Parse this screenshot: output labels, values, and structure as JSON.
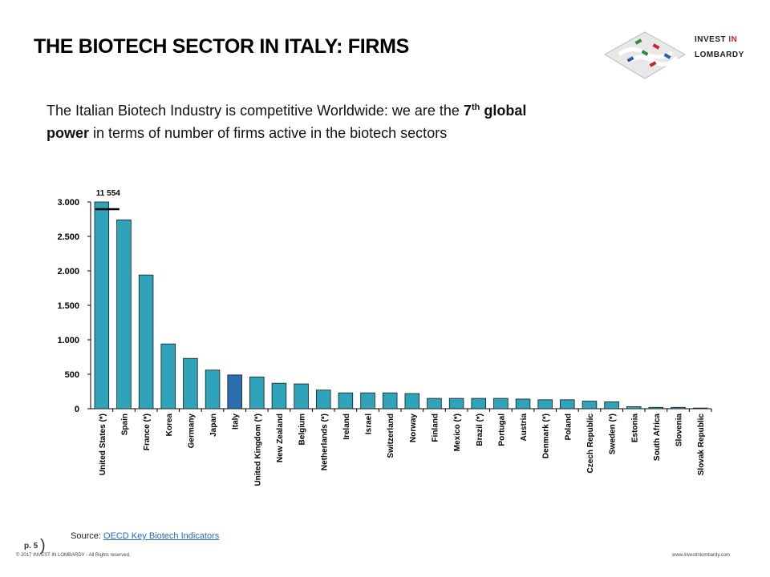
{
  "header": {
    "title": "THE BIOTECH SECTOR IN ITALY: FIRMS",
    "logo_1": "INVEST ",
    "logo_2": "IN",
    "logo_3": "LOMBARDY"
  },
  "subtitle": [
    "The Italian Biotech Industry is competitive Worldwide: we are the ",
    "7",
    "th",
    " global",
    "power",
    " in terms of number of firms active in the biotech sectors"
  ],
  "footer": {
    "page": "p. 5",
    "source_label": "Source: ",
    "source_link": "OECD Key Biotech Indicators",
    "copyright": "© 2017 INVEST IN LOMBARDY - All Rights reserved.",
    "website": "www.investinlombardy.com"
  },
  "chart_data": {
    "type": "bar",
    "categories": [
      "United States (*)",
      "Spain",
      "France (*)",
      "Korea",
      "Germany",
      "Japan",
      "Italy",
      "United Kingdom (*)",
      "New Zealand",
      "Belgium",
      "Netherlands (*)",
      "Ireland",
      "Israel",
      "Switzerland",
      "Norway",
      "Finland",
      "Mexico (*)",
      "Brazil (*)",
      "Portugal",
      "Austria",
      "Denmark (*)",
      "Poland",
      "Czech Republic",
      "Sweden (*)",
      "Estonia",
      "South Africa",
      "Slovenia",
      "Slovak Republic"
    ],
    "values": [
      11554,
      2740,
      1940,
      940,
      730,
      560,
      490,
      460,
      370,
      360,
      270,
      230,
      230,
      230,
      220,
      150,
      150,
      150,
      150,
      140,
      130,
      130,
      110,
      100,
      30,
      20,
      20,
      10
    ],
    "value_labels": [
      "11 554",
      null,
      null,
      null,
      null,
      null,
      null,
      null,
      null,
      null,
      null,
      null,
      null,
      null,
      null,
      null,
      null,
      null,
      null,
      null,
      null,
      null,
      null,
      null,
      null,
      null,
      null,
      null
    ],
    "colors": [
      "#2fa3b9",
      "#2fa3b9",
      "#2fa3b9",
      "#2fa3b9",
      "#2fa3b9",
      "#2fa3b9",
      "#2a6db0",
      "#2fa3b9",
      "#2fa3b9",
      "#2fa3b9",
      "#2fa3b9",
      "#2fa3b9",
      "#2fa3b9",
      "#2fa3b9",
      "#2fa3b9",
      "#2fa3b9",
      "#2fa3b9",
      "#2fa3b9",
      "#2fa3b9",
      "#2fa3b9",
      "#2fa3b9",
      "#2fa3b9",
      "#2fa3b9",
      "#2fa3b9",
      "#2fa3b9",
      "#2fa3b9",
      "#2fa3b9",
      "#2fa3b9"
    ],
    "ylim": [
      0,
      3000
    ],
    "yticks": [
      0,
      500,
      {
        "value": 1000,
        "label": "1.000"
      },
      {
        "value": 1500,
        "label": "1.500"
      },
      {
        "value": 2000,
        "label": "2.000"
      },
      {
        "value": 2500,
        "label": "2.500"
      },
      {
        "value": 3000,
        "label": "3.000"
      }
    ],
    "grid": false
  }
}
